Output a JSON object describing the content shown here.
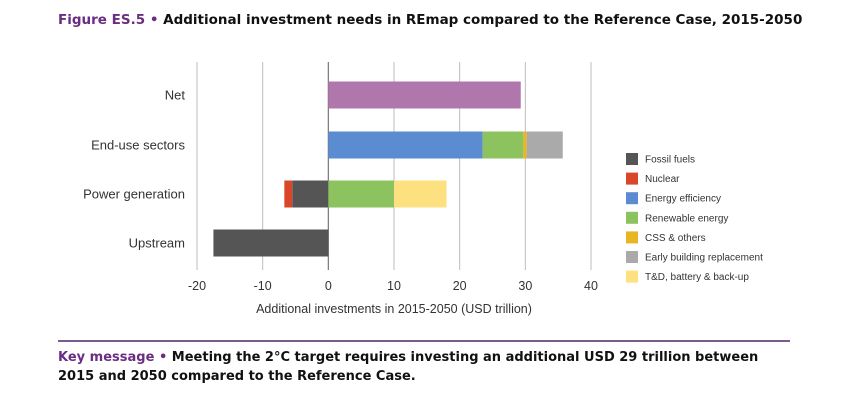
{
  "figure": {
    "number": "Figure ES.5",
    "bullet": "•",
    "title": "Additional investment needs in REmap compared to the Reference Case, 2015-2050"
  },
  "key_message": {
    "label": "Key message",
    "bullet": "•",
    "text": "Meeting the 2°C target requires investing an additional USD 29 trillion between 2015 and 2050 compared to the Reference Case."
  },
  "chart_data": {
    "type": "bar",
    "orientation": "horizontal",
    "stacked": true,
    "title": "Additional investment needs in REmap compared to the Reference Case, 2015-2050",
    "xlabel": "Additional investments in 2015-2050 (USD trillion)",
    "ylabel": "",
    "xlim": [
      -20,
      40
    ],
    "xticks": [
      "-20",
      "-10",
      "0",
      "10",
      "20",
      "30",
      "40"
    ],
    "grid": true,
    "legend_position": "right",
    "categories": [
      "Net",
      "End-use sectors",
      "Power generation",
      "Upstream"
    ],
    "series": [
      {
        "name": "Fossil fuels",
        "color": "#555555",
        "values": [
          0,
          0,
          -5.5,
          -17.5
        ]
      },
      {
        "name": "Nuclear",
        "color": "#d9472b",
        "values": [
          0,
          0,
          -1.2,
          0
        ]
      },
      {
        "name": "Energy efficiency",
        "color": "#5b8bd0",
        "values": [
          0,
          23.5,
          0,
          0
        ]
      },
      {
        "name": "Renewable energy",
        "color": "#8cc35e",
        "values": [
          0,
          6.2,
          10,
          0
        ]
      },
      {
        "name": "CSS & others",
        "color": "#e8b523",
        "values": [
          0,
          0.5,
          0,
          0
        ]
      },
      {
        "name": "Early building replacement",
        "color": "#aaaaaa",
        "values": [
          0,
          5.5,
          0,
          0
        ]
      },
      {
        "name": "T&D, battery & back-up",
        "color": "#fde07f",
        "values": [
          0,
          0,
          8,
          0
        ]
      },
      {
        "name": "Net",
        "color": "#b077ad",
        "values": [
          29.3,
          0,
          0,
          0
        ],
        "in_legend": false
      }
    ]
  }
}
